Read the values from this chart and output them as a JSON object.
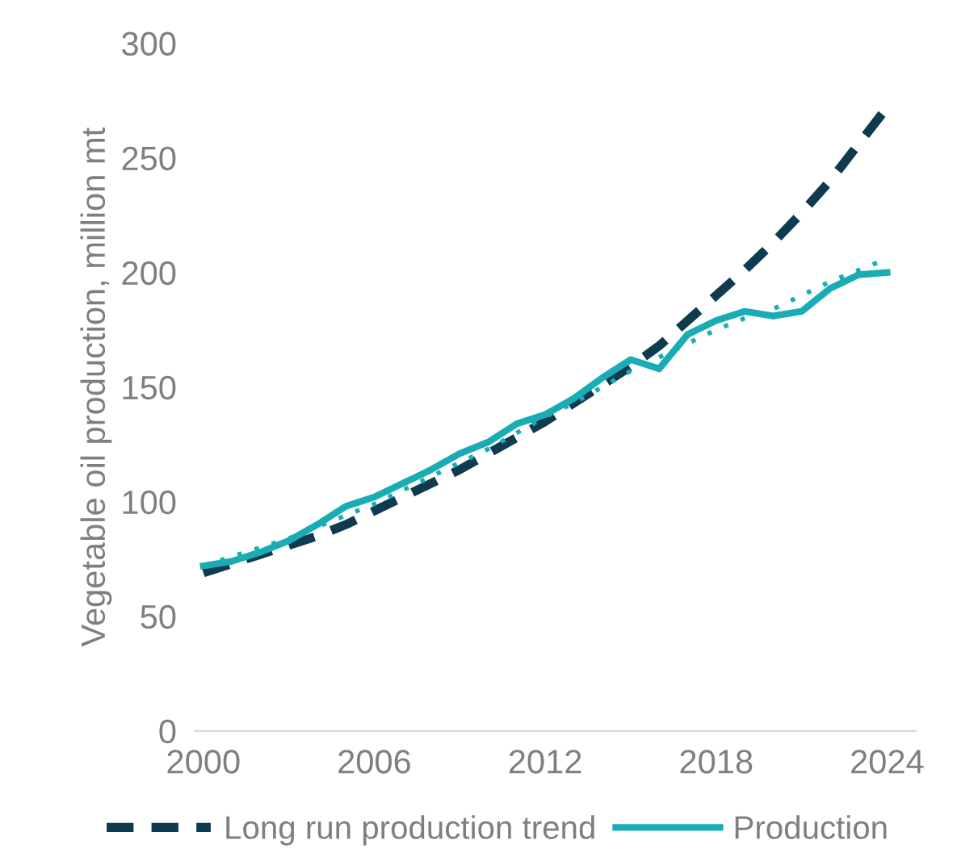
{
  "chart_data": {
    "type": "line",
    "ylabel": "Vegetable oil production, million mt",
    "x": [
      2000,
      2001,
      2002,
      2003,
      2004,
      2005,
      2006,
      2007,
      2008,
      2009,
      2010,
      2011,
      2012,
      2013,
      2014,
      2015,
      2016,
      2017,
      2018,
      2019,
      2020,
      2021,
      2022,
      2023,
      2024
    ],
    "series": [
      {
        "name": "Long run production trend",
        "color": "#0e3b4f",
        "line_style": "dashed",
        "values": [
          69,
          73,
          77,
          81,
          85,
          90,
          96,
          102,
          108,
          114,
          121,
          128,
          135,
          143,
          151,
          159,
          168,
          179,
          190,
          201,
          213,
          226,
          240,
          256,
          272
        ]
      },
      {
        "color": "#1aacb4",
        "line_style": "dotted",
        "values": [
          72,
          76,
          80,
          84,
          89,
          94,
          99,
          105,
          111,
          117,
          123,
          130,
          137,
          143,
          150,
          157,
          163,
          169,
          175,
          180,
          184,
          190,
          196,
          201,
          206
        ]
      },
      {
        "name": "Production",
        "color": "#1aacb4",
        "line_style": "solid",
        "values": [
          72,
          74,
          78,
          83,
          90,
          98,
          102,
          108,
          114,
          121,
          126,
          134,
          138,
          145,
          154,
          162,
          158,
          173,
          179,
          183,
          181,
          183,
          193,
          199,
          200
        ]
      }
    ],
    "xlim": [
      1999.7,
      2025
    ],
    "xticks": [
      2000,
      2006,
      2012,
      2018,
      2024
    ],
    "ylim": [
      0,
      300
    ],
    "yticks": [
      0,
      50,
      100,
      150,
      200,
      250,
      300
    ],
    "grid": false,
    "legend": "bottom",
    "marker": "none"
  }
}
